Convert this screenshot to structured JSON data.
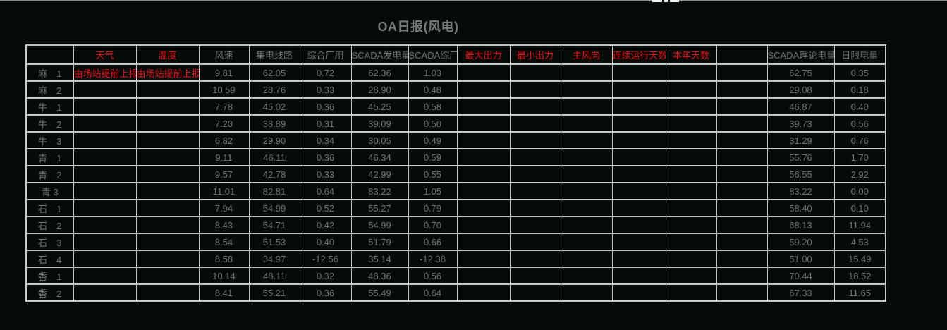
{
  "page": {
    "title": "OA日报(风电)"
  },
  "table": {
    "columns": [
      {
        "label": "",
        "accent": false
      },
      {
        "label": "天气",
        "accent": true
      },
      {
        "label": "温度",
        "accent": true
      },
      {
        "label": "风速",
        "accent": false
      },
      {
        "label": "集电线路",
        "accent": false
      },
      {
        "label": "综合厂用",
        "accent": false
      },
      {
        "label": "SCADA发电量",
        "accent": false
      },
      {
        "label": "SCADA综厂",
        "accent": false
      },
      {
        "label": "最大出力",
        "accent": true
      },
      {
        "label": "最小出力",
        "accent": true
      },
      {
        "label": "主风向",
        "accent": true
      },
      {
        "label": "连续运行天数",
        "accent": true
      },
      {
        "label": "本年天数",
        "accent": true
      },
      {
        "label": "",
        "accent": false
      },
      {
        "label": "SCADA理论电量",
        "accent": false
      },
      {
        "label": "日限电量",
        "accent": false
      }
    ],
    "rows": [
      [
        "麻　1",
        "由场站提前上报",
        "由场站提前上报",
        "9.81",
        "62.05",
        "0.72",
        "62.36",
        "1.03",
        "",
        "",
        "",
        "",
        "",
        "",
        "62.75",
        "0.35"
      ],
      [
        "麻　2",
        "",
        "",
        "10.59",
        "28.76",
        "0.33",
        "28.90",
        "0.48",
        "",
        "",
        "",
        "",
        "",
        "",
        "29.08",
        "0.18"
      ],
      [
        "牛　1",
        "",
        "",
        "7.78",
        "45.02",
        "0.36",
        "45.25",
        "0.58",
        "",
        "",
        "",
        "",
        "",
        "",
        "46.87",
        "0.40"
      ],
      [
        "牛　2",
        "",
        "",
        "7.20",
        "38.89",
        "0.31",
        "39.09",
        "0.50",
        "",
        "",
        "",
        "",
        "",
        "",
        "39.73",
        "0.56"
      ],
      [
        "牛　3",
        "",
        "",
        "6.82",
        "29.90",
        "0.34",
        "30.05",
        "0.49",
        "",
        "",
        "",
        "",
        "",
        "",
        "31.29",
        "0.76"
      ],
      [
        "青　1",
        "",
        "",
        "9.11",
        "46.11",
        "0.36",
        "46.34",
        "0.59",
        "",
        "",
        "",
        "",
        "",
        "",
        "55.76",
        "1.70"
      ],
      [
        "青　2",
        "",
        "",
        "9.57",
        "42.78",
        "0.33",
        "42.99",
        "0.55",
        "",
        "",
        "",
        "",
        "",
        "",
        "56.55",
        "2.92"
      ],
      [
        "青 3",
        "",
        "",
        "11.01",
        "82.81",
        "0.64",
        "83.22",
        "1.05",
        "",
        "",
        "",
        "",
        "",
        "",
        "83.22",
        "0.00"
      ],
      [
        "石　1",
        "",
        "",
        "7.94",
        "54.99",
        "0.52",
        "55.27",
        "0.79",
        "",
        "",
        "",
        "",
        "",
        "",
        "58.40",
        "0.10"
      ],
      [
        "石　2",
        "",
        "",
        "8.43",
        "54.71",
        "0.42",
        "54.99",
        "0.70",
        "",
        "",
        "",
        "",
        "",
        "",
        "68.13",
        "11.94"
      ],
      [
        "石　3",
        "",
        "",
        "8.54",
        "51.53",
        "0.40",
        "51.79",
        "0.66",
        "",
        "",
        "",
        "",
        "",
        "",
        "59.20",
        "4.53"
      ],
      [
        "石　4",
        "",
        "",
        "8.58",
        "34.97",
        "-12.56",
        "35.14",
        "-12.38",
        "",
        "",
        "",
        "",
        "",
        "",
        "51.00",
        "15.49"
      ],
      [
        "香　1",
        "",
        "",
        "10.14",
        "48.11",
        "0.32",
        "48.36",
        "0.56",
        "",
        "",
        "",
        "",
        "",
        "",
        "70.44",
        "18.52"
      ],
      [
        "香　2",
        "",
        "",
        "8.41",
        "55.21",
        "0.36",
        "55.49",
        "0.64",
        "",
        "",
        "",
        "",
        "",
        "",
        "67.33",
        "11.65"
      ]
    ],
    "red_cells": {
      "0": [
        1,
        2
      ]
    }
  },
  "colors": {
    "background": "#050b08",
    "grid_line": "#c3c6c5",
    "body_text": "#6f7572",
    "accent_red": "#e51414",
    "title_text": "#767c79"
  }
}
